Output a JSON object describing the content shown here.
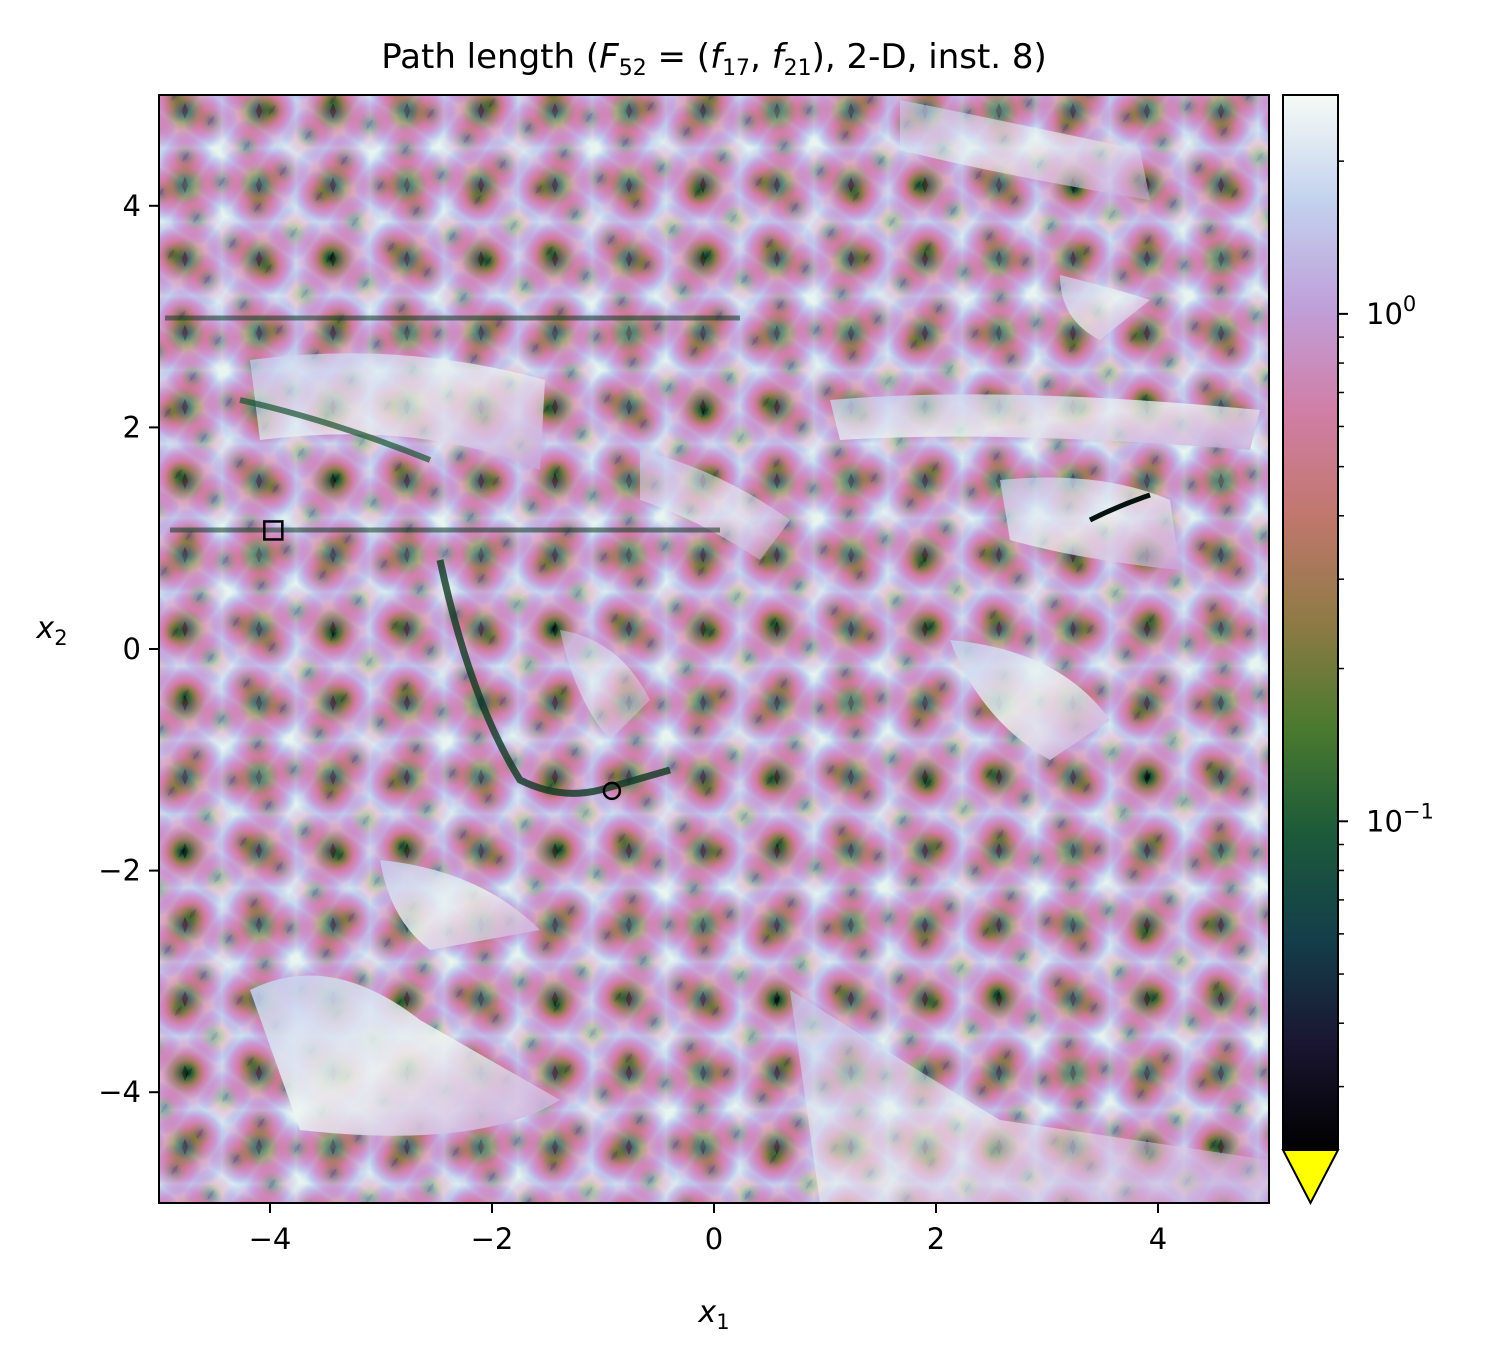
{
  "chart_data": {
    "type": "heatmap",
    "title": "Path length (F52 = (f17, f21), 2-D, inst. 8)",
    "title_parts": {
      "prefix": "Path length (",
      "F": "F",
      "F_sub": "52",
      "eq": " = (",
      "f1": "f",
      "f1_sub": "17",
      "comma": ", ",
      "f2": "f",
      "f2_sub": "21",
      "suffix": "), 2-D, inst. 8)"
    },
    "xlabel": {
      "base": "x",
      "sub": "1"
    },
    "ylabel": {
      "base": "x",
      "sub": "2"
    },
    "xlim": [
      -5,
      5
    ],
    "ylim": [
      -5,
      5
    ],
    "x_ticks": [
      -4,
      -2,
      0,
      2,
      4
    ],
    "y_ticks": [
      -4,
      -2,
      0,
      2,
      4
    ],
    "x_tick_labels": [
      "−4",
      "−2",
      "0",
      "2",
      "4"
    ],
    "y_tick_labels": [
      "−4",
      "−2",
      "0",
      "2",
      "4"
    ],
    "grid": false,
    "colorbar": {
      "scale": "log",
      "range": [
        0.0225,
        2.7
      ],
      "colormap": "cubehelix",
      "extend": "min",
      "extend_color": "#ffff00",
      "ticks": [
        {
          "value": 1,
          "base": "10",
          "exp": "0"
        },
        {
          "value": 0.1,
          "base": "10",
          "exp": "−1"
        }
      ]
    },
    "markers": [
      {
        "name": "square-marker",
        "shape": "square",
        "x": -3.97,
        "y": 1.07
      },
      {
        "name": "circle-marker",
        "shape": "circle",
        "x": -0.92,
        "y": -1.28
      }
    ]
  }
}
